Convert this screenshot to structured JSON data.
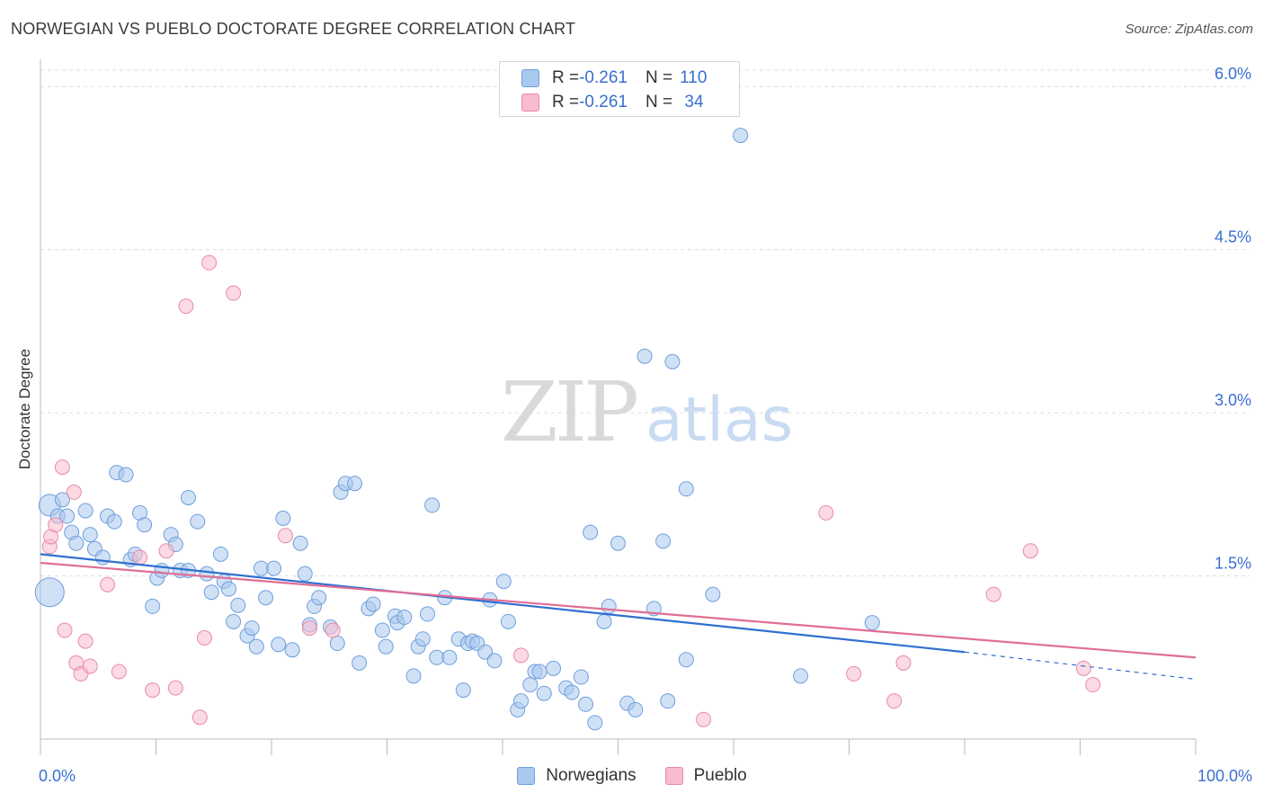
{
  "header": {
    "title": "NORWEGIAN VS PUEBLO DOCTORATE DEGREE CORRELATION CHART",
    "source": "Source: ZipAtlas.com"
  },
  "watermark": {
    "zip": "ZIP",
    "atlas": "atlas"
  },
  "colors": {
    "norwegians_fill": "#a9c9ef",
    "norwegians_stroke": "#6f9fdc",
    "norwegians_line": "#2f6fd0",
    "pueblo_fill": "#f7bccd",
    "pueblo_stroke": "#e98aa8",
    "pueblo_line": "#e06e94",
    "axis_text": "#3a6fd0",
    "grid": "#dddddd"
  },
  "legend": {
    "rows": [
      {
        "r_label": "R = ",
        "r_value": "-0.261",
        "n_label": "N = ",
        "n_value": "110"
      },
      {
        "r_label": "R = ",
        "r_value": "-0.261",
        "n_label": "N = ",
        "n_value": " 34"
      }
    ]
  },
  "bottom_legend": {
    "items": [
      "Norwegians",
      "Pueblo"
    ]
  },
  "chart_data": {
    "type": "scatter",
    "title": "NORWEGIAN VS PUEBLO DOCTORATE DEGREE CORRELATION CHART",
    "xlabel": "",
    "ylabel": "Doctorate Degree",
    "xlim": [
      0,
      100
    ],
    "ylim": [
      0,
      6.2
    ],
    "x_tick_labels": [
      "0.0%",
      "100.0%"
    ],
    "y_ticks": [
      1.5,
      3.0,
      4.5,
      6.0
    ],
    "y_tick_labels": [
      "1.5%",
      "3.0%",
      "4.5%",
      "6.0%"
    ],
    "grid": true,
    "legend_position": "top-center",
    "series": [
      {
        "name": "Norwegians",
        "r": -0.261,
        "n": 110,
        "trend": {
          "x0": 0,
          "y0": 1.7,
          "x1": 80,
          "y1": 0.8,
          "dashed_to_x": 100,
          "dashed_y1": 0.55
        },
        "points": [
          [
            0.8,
            2.15,
            12
          ],
          [
            0.8,
            1.35,
            16
          ],
          [
            1.5,
            2.05,
            8
          ],
          [
            1.9,
            2.2,
            8
          ],
          [
            2.3,
            2.05,
            8
          ],
          [
            2.7,
            1.9,
            8
          ],
          [
            3.1,
            1.8,
            8
          ],
          [
            3.9,
            2.1,
            8
          ],
          [
            4.3,
            1.88,
            8
          ],
          [
            4.7,
            1.75,
            8
          ],
          [
            5.4,
            1.67,
            8
          ],
          [
            5.8,
            2.05,
            8
          ],
          [
            6.6,
            2.45,
            8
          ],
          [
            6.4,
            2.0,
            8
          ],
          [
            7.4,
            2.43,
            8
          ],
          [
            7.8,
            1.65,
            8
          ],
          [
            8.2,
            1.7,
            8
          ],
          [
            8.6,
            2.08,
            8
          ],
          [
            9.0,
            1.97,
            8
          ],
          [
            9.7,
            1.22,
            8
          ],
          [
            10.1,
            1.48,
            8
          ],
          [
            10.5,
            1.55,
            8
          ],
          [
            11.3,
            1.88,
            8
          ],
          [
            11.7,
            1.79,
            8
          ],
          [
            12.1,
            1.55,
            8
          ],
          [
            12.8,
            2.22,
            8
          ],
          [
            12.8,
            1.55,
            8
          ],
          [
            13.6,
            2.0,
            8
          ],
          [
            14.4,
            1.52,
            8
          ],
          [
            14.8,
            1.35,
            8
          ],
          [
            15.6,
            1.7,
            8
          ],
          [
            15.9,
            1.45,
            8
          ],
          [
            16.3,
            1.38,
            8
          ],
          [
            16.7,
            1.08,
            8
          ],
          [
            17.1,
            1.23,
            8
          ],
          [
            17.9,
            0.95,
            8
          ],
          [
            18.3,
            1.02,
            8
          ],
          [
            18.7,
            0.85,
            8
          ],
          [
            19.1,
            1.57,
            8
          ],
          [
            19.5,
            1.3,
            8
          ],
          [
            20.2,
            1.57,
            8
          ],
          [
            20.6,
            0.87,
            8
          ],
          [
            21.0,
            2.03,
            8
          ],
          [
            21.8,
            0.82,
            8
          ],
          [
            22.5,
            1.8,
            8
          ],
          [
            22.9,
            1.52,
            8
          ],
          [
            23.3,
            1.05,
            8
          ],
          [
            23.7,
            1.22,
            8
          ],
          [
            24.1,
            1.3,
            8
          ],
          [
            25.1,
            1.03,
            8
          ],
          [
            25.7,
            0.88,
            8
          ],
          [
            26.0,
            2.27,
            8
          ],
          [
            26.4,
            2.35,
            8
          ],
          [
            27.2,
            2.35,
            8
          ],
          [
            27.6,
            0.7,
            8
          ],
          [
            28.4,
            1.2,
            8
          ],
          [
            28.8,
            1.24,
            8
          ],
          [
            29.6,
            1.0,
            8
          ],
          [
            29.9,
            0.85,
            8
          ],
          [
            30.7,
            1.13,
            8
          ],
          [
            30.9,
            1.07,
            8
          ],
          [
            31.5,
            1.12,
            8
          ],
          [
            32.3,
            0.58,
            8
          ],
          [
            32.7,
            0.85,
            8
          ],
          [
            33.1,
            0.92,
            8
          ],
          [
            33.5,
            1.15,
            8
          ],
          [
            33.9,
            2.15,
            8
          ],
          [
            34.3,
            0.75,
            8
          ],
          [
            35.0,
            1.3,
            8
          ],
          [
            35.4,
            0.75,
            8
          ],
          [
            36.2,
            0.92,
            8
          ],
          [
            36.6,
            0.45,
            8
          ],
          [
            37.0,
            0.88,
            8
          ],
          [
            37.4,
            0.9,
            8
          ],
          [
            37.8,
            0.88,
            8
          ],
          [
            38.5,
            0.8,
            8
          ],
          [
            38.9,
            1.28,
            8
          ],
          [
            39.3,
            0.72,
            8
          ],
          [
            40.1,
            1.45,
            8
          ],
          [
            40.5,
            1.08,
            8
          ],
          [
            41.3,
            0.27,
            8
          ],
          [
            41.6,
            0.35,
            8
          ],
          [
            42.4,
            0.5,
            8
          ],
          [
            42.8,
            0.62,
            8
          ],
          [
            43.2,
            0.62,
            8
          ],
          [
            43.6,
            0.42,
            8
          ],
          [
            44.4,
            0.65,
            8
          ],
          [
            45.5,
            0.47,
            8
          ],
          [
            46.0,
            0.43,
            8
          ],
          [
            46.8,
            0.57,
            8
          ],
          [
            47.2,
            0.32,
            8
          ],
          [
            47.6,
            1.9,
            8
          ],
          [
            48.0,
            0.15,
            8
          ],
          [
            48.8,
            1.08,
            8
          ],
          [
            49.2,
            1.22,
            8
          ],
          [
            50.0,
            1.8,
            8
          ],
          [
            50.8,
            0.33,
            8
          ],
          [
            51.5,
            0.27,
            8
          ],
          [
            52.3,
            3.52,
            8
          ],
          [
            53.1,
            1.2,
            8
          ],
          [
            53.9,
            1.82,
            8
          ],
          [
            54.3,
            0.35,
            8
          ],
          [
            54.7,
            3.47,
            8
          ],
          [
            55.9,
            2.3,
            8
          ],
          [
            55.9,
            0.73,
            8
          ],
          [
            58.2,
            1.33,
            8
          ],
          [
            60.6,
            5.55,
            8
          ],
          [
            65.8,
            0.58,
            8
          ],
          [
            72.0,
            1.07,
            8
          ]
        ]
      },
      {
        "name": "Pueblo",
        "r": -0.261,
        "n": 34,
        "trend": {
          "x0": 0,
          "y0": 1.62,
          "x1": 100,
          "y1": 0.75
        },
        "points": [
          [
            0.8,
            1.77,
            8
          ],
          [
            0.9,
            1.86,
            8
          ],
          [
            1.3,
            1.97,
            8
          ],
          [
            1.9,
            2.5,
            8
          ],
          [
            2.1,
            1.0,
            8
          ],
          [
            2.9,
            2.27,
            8
          ],
          [
            3.1,
            0.7,
            8
          ],
          [
            3.5,
            0.6,
            8
          ],
          [
            3.9,
            0.9,
            8
          ],
          [
            4.3,
            0.67,
            8
          ],
          [
            5.8,
            1.42,
            8
          ],
          [
            6.8,
            0.62,
            8
          ],
          [
            8.6,
            1.67,
            8
          ],
          [
            9.7,
            0.45,
            8
          ],
          [
            10.9,
            1.73,
            8
          ],
          [
            11.7,
            0.47,
            8
          ],
          [
            12.6,
            3.98,
            8
          ],
          [
            13.8,
            0.2,
            8
          ],
          [
            14.2,
            0.93,
            8
          ],
          [
            14.6,
            4.38,
            8
          ],
          [
            16.7,
            4.1,
            8
          ],
          [
            21.2,
            1.87,
            8
          ],
          [
            23.3,
            1.02,
            8
          ],
          [
            25.3,
            1.0,
            8
          ],
          [
            41.6,
            0.77,
            8
          ],
          [
            57.4,
            0.18,
            8
          ],
          [
            68.0,
            2.08,
            8
          ],
          [
            70.4,
            0.6,
            8
          ],
          [
            73.9,
            0.35,
            8
          ],
          [
            74.7,
            0.7,
            8
          ],
          [
            82.5,
            1.33,
            8
          ],
          [
            85.7,
            1.73,
            8
          ],
          [
            90.3,
            0.65,
            8
          ],
          [
            91.1,
            0.5,
            8
          ]
        ]
      }
    ]
  }
}
